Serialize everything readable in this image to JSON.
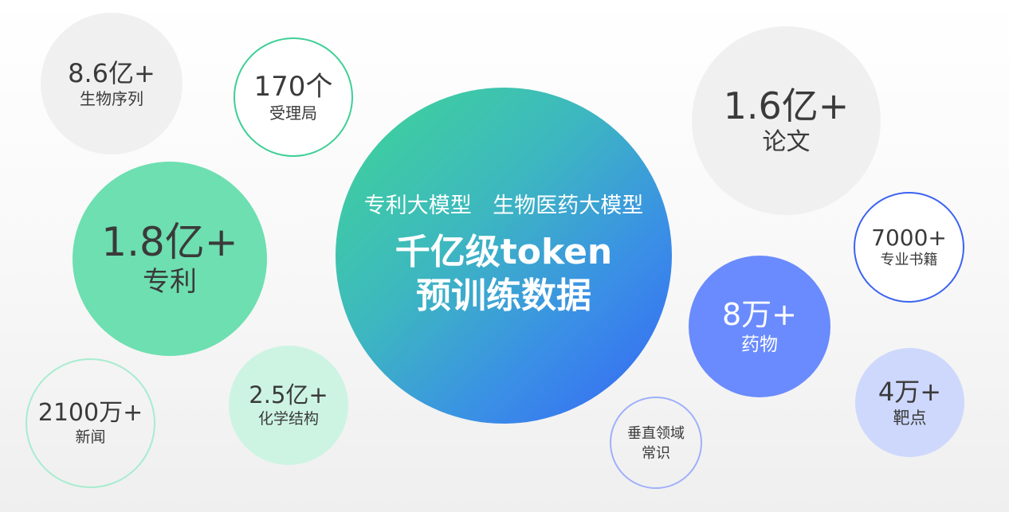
{
  "colors": {
    "main_gradient_start": "#3fd694",
    "main_gradient_end": "#3565f7",
    "patent_green": "#6ddfb0",
    "drug_blue": "#6a8bfd",
    "gray_bubble": "#f0f0f0"
  },
  "center": {
    "subtitle": "专利大模型 生物医药大模型",
    "title_line1": "千亿级token",
    "title_line2": "预训练数据"
  },
  "bubbles": {
    "sequences": {
      "value": "8.6亿+",
      "label": "生物序列"
    },
    "offices": {
      "value": "170个",
      "label": "受理局"
    },
    "patents": {
      "value": "1.8亿+",
      "label": "专利"
    },
    "news": {
      "value": "2100万+",
      "label": "新闻"
    },
    "chemicals": {
      "value": "2.5亿+",
      "label": "化学结构"
    },
    "papers": {
      "value": "1.6亿+",
      "label": "论文"
    },
    "books": {
      "value": "7000+",
      "label": "专业书籍"
    },
    "drugs": {
      "value": "8万+",
      "label": "药物"
    },
    "targets": {
      "value": "4万+",
      "label": "靶点"
    },
    "common_sense": {
      "label_line1": "垂直领域",
      "label_line2": "常识"
    }
  }
}
